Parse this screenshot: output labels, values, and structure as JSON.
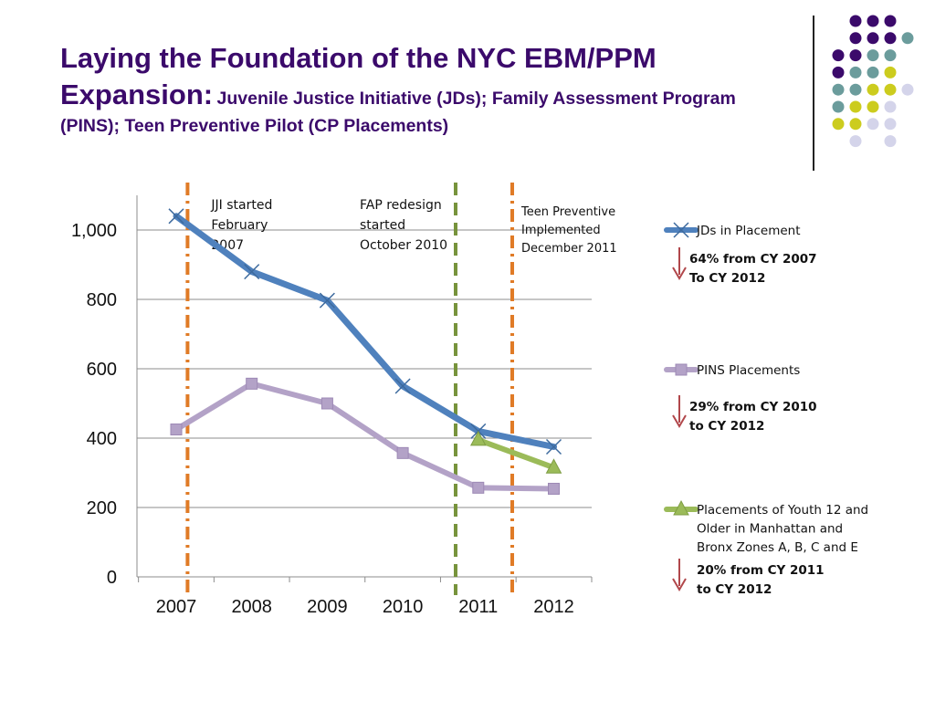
{
  "slide": {
    "title_main": "Laying the Foundation of the NYC EBM/PPM Expansion:",
    "title_sub": "Juvenile Justice Initiative (JDs); Family Assessment Program (PINS); Teen Preventive Pilot (CP Placements)"
  },
  "decor": {
    "dot_colors": {
      "purple": "#3b0a6b",
      "teal": "#6b9c9c",
      "yellow": "#cccc1e",
      "lavender": "#d4d4ea"
    }
  },
  "chart_data": {
    "type": "line",
    "title": "",
    "xlabel": "",
    "ylabel": "",
    "categories": [
      "2007",
      "2008",
      "2009",
      "2010",
      "2011",
      "2012"
    ],
    "ylim": [
      0,
      1100
    ],
    "yticks": [
      0,
      200,
      400,
      600,
      800,
      1000
    ],
    "ytick_labels": [
      "0",
      "200",
      "400",
      "600",
      "800",
      "1,000"
    ],
    "grid": true,
    "legend_position": "right",
    "series": [
      {
        "name": "JDs in Placement",
        "color": "#4f81bd",
        "marker": "x",
        "values": [
          1040,
          880,
          797,
          550,
          420,
          375
        ]
      },
      {
        "name": "PINS Placements",
        "color": "#b3a2c7",
        "marker": "square",
        "values": [
          425,
          557,
          500,
          357,
          257,
          254
        ]
      },
      {
        "name": "Placements of Youth 12 and Older in Manhattan and Bronx Zones A, B, C and E",
        "color": "#9bbb59",
        "marker": "triangle",
        "values": [
          null,
          null,
          null,
          null,
          395,
          315
        ]
      }
    ],
    "legend_lines": [
      [
        "JDs in Placement"
      ],
      [
        "PINS Placements"
      ],
      [
        "Placements of Youth 12 and",
        "Older in Manhattan and",
        "Bronx Zones A, B, C and E"
      ]
    ],
    "changes": [
      [
        "64% from CY 2007",
        "To CY 2012"
      ],
      [
        "29% from CY 2010",
        "to CY 2012"
      ],
      [
        "20% from CY 2011",
        "to CY 2012"
      ]
    ],
    "annotations": [
      {
        "at": 2007.15,
        "color": "#e07b26",
        "style": "dashdot",
        "lines": [
          "JJI started",
          "February",
          "2007"
        ]
      },
      {
        "at": 2010.7,
        "color": "#77933c",
        "style": "dash",
        "lines": [
          "FAP redesign",
          "started",
          "October 2010"
        ]
      },
      {
        "at": 2011.45,
        "color": "#e07b26",
        "style": "dashdot",
        "lines": [
          "Teen Preventive",
          "Implemented",
          "December 2011"
        ]
      }
    ]
  }
}
